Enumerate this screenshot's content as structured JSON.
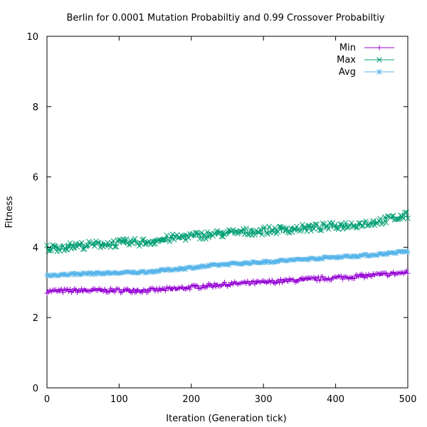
{
  "chart_data": {
    "type": "line",
    "title": "Berlin for 0.0001 Mutation Probabiltiy and 0.99 Crossover Probabiltiy",
    "xlabel": "Iteration (Generation tick)",
    "ylabel": "Fitness",
    "xlim": [
      0,
      500
    ],
    "ylim": [
      0,
      10
    ],
    "xticks": [
      "0",
      "100",
      "200",
      "300",
      "400",
      "500"
    ],
    "yticks": [
      "0",
      "2",
      "4",
      "6",
      "8",
      "10"
    ],
    "grid": false,
    "legend_position": "top-right",
    "x": [
      0,
      50,
      100,
      140,
      180,
      220,
      250,
      300,
      350,
      400,
      450,
      500
    ],
    "series": [
      {
        "name": "Min",
        "color": "#9400d3",
        "marker": "plus",
        "values": [
          2.75,
          2.77,
          2.77,
          2.77,
          2.82,
          2.9,
          2.95,
          3.0,
          3.07,
          3.13,
          3.2,
          3.28
        ]
      },
      {
        "name": "Max",
        "color": "#009e73",
        "marker": "cross",
        "values": [
          3.97,
          4.05,
          4.12,
          4.15,
          4.28,
          4.35,
          4.4,
          4.47,
          4.53,
          4.6,
          4.7,
          4.9
        ]
      },
      {
        "name": "Avg",
        "color": "#56b4e9",
        "marker": "star",
        "values": [
          3.2,
          3.25,
          3.27,
          3.3,
          3.38,
          3.46,
          3.52,
          3.58,
          3.65,
          3.72,
          3.78,
          3.88
        ]
      }
    ]
  }
}
